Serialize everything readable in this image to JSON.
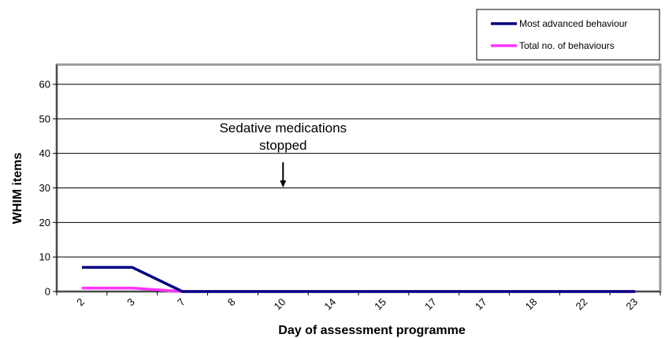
{
  "chart_data": {
    "type": "line",
    "categories": [
      "2",
      "3",
      "7",
      "8",
      "10",
      "14",
      "15",
      "17",
      "17",
      "18",
      "22",
      "23"
    ],
    "xlabel": "Day of assessment programme",
    "ylabel": "WHIM items",
    "ylim": [
      0,
      60
    ],
    "yticks": [
      0,
      10,
      20,
      30,
      40,
      50,
      60
    ],
    "grid": true,
    "legend_position": "top-right",
    "series": [
      {
        "name": "Most advanced behaviour",
        "color": "#000080",
        "values": [
          7,
          7,
          0,
          0,
          0,
          0,
          0,
          0,
          0,
          0,
          0,
          0
        ]
      },
      {
        "name": "Total no. of behaviours",
        "color": "#ff33ff",
        "values": [
          1,
          1,
          0,
          0,
          0,
          0,
          0,
          0,
          0,
          0,
          0,
          0
        ]
      }
    ],
    "annotation": {
      "line1": "Sedative medications",
      "line2": "stopped",
      "at_category_index": 4
    }
  }
}
